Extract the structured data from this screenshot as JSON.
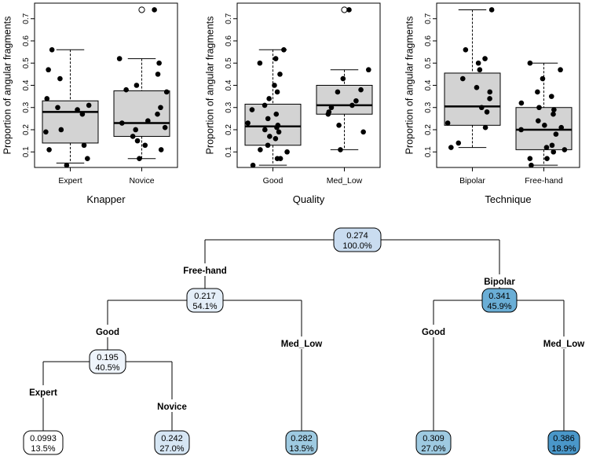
{
  "chart_data": [
    {
      "type": "boxplot",
      "xlabel": "Knapper",
      "ylabel": "Proportion of angular fragments",
      "ylim": [
        0.03,
        0.77
      ],
      "yticks": [
        0.1,
        0.2,
        0.3,
        0.4,
        0.5,
        0.6,
        0.7
      ],
      "categories": [
        "Expert",
        "Novice"
      ],
      "boxes": [
        {
          "category": "Expert",
          "whisker_low": 0.05,
          "q1": 0.14,
          "median": 0.28,
          "q3": 0.33,
          "whisker_high": 0.56,
          "outliers": []
        },
        {
          "category": "Novice",
          "whisker_low": 0.07,
          "q1": 0.17,
          "median": 0.23,
          "q3": 0.375,
          "whisker_high": 0.52,
          "outliers": [
            0.74
          ]
        }
      ],
      "points": [
        {
          "category": "Expert",
          "values": [
            0.04,
            0.07,
            0.11,
            0.13,
            0.19,
            0.2,
            0.27,
            0.29,
            0.3,
            0.31,
            0.34,
            0.43,
            0.47,
            0.56
          ]
        },
        {
          "category": "Novice",
          "values": [
            0.07,
            0.11,
            0.13,
            0.15,
            0.17,
            0.2,
            0.21,
            0.23,
            0.24,
            0.27,
            0.3,
            0.37,
            0.38,
            0.4,
            0.45,
            0.5,
            0.52,
            0.74
          ]
        }
      ]
    },
    {
      "type": "boxplot",
      "xlabel": "Quality",
      "ylabel": "Proportion of angular fragments",
      "ylim": [
        0.03,
        0.77
      ],
      "yticks": [
        0.1,
        0.2,
        0.3,
        0.4,
        0.5,
        0.6,
        0.7
      ],
      "categories": [
        "Good",
        "Med_Low"
      ],
      "boxes": [
        {
          "category": "Good",
          "whisker_low": 0.04,
          "q1": 0.13,
          "median": 0.215,
          "q3": 0.315,
          "whisker_high": 0.56,
          "outliers": []
        },
        {
          "category": "Med_Low",
          "whisker_low": 0.11,
          "q1": 0.27,
          "median": 0.31,
          "q3": 0.4,
          "whisker_high": 0.47,
          "outliers": [
            0.74
          ]
        }
      ],
      "points": [
        {
          "category": "Good",
          "values": [
            0.04,
            0.07,
            0.07,
            0.1,
            0.11,
            0.13,
            0.16,
            0.17,
            0.19,
            0.2,
            0.21,
            0.22,
            0.23,
            0.25,
            0.27,
            0.29,
            0.31,
            0.34,
            0.37,
            0.4,
            0.45,
            0.5,
            0.52,
            0.56
          ]
        },
        {
          "category": "Med_Low",
          "values": [
            0.11,
            0.19,
            0.22,
            0.27,
            0.28,
            0.3,
            0.31,
            0.33,
            0.37,
            0.38,
            0.43,
            0.47,
            0.74
          ]
        }
      ]
    },
    {
      "type": "boxplot",
      "xlabel": "Technique",
      "ylabel": "Proportion of angular fragments",
      "ylim": [
        0.03,
        0.77
      ],
      "yticks": [
        0.1,
        0.2,
        0.3,
        0.4,
        0.5,
        0.6,
        0.7
      ],
      "categories": [
        "Bipolar",
        "Free-hand"
      ],
      "boxes": [
        {
          "category": "Bipolar",
          "whisker_low": 0.12,
          "q1": 0.22,
          "median": 0.305,
          "q3": 0.455,
          "whisker_high": 0.74,
          "outliers": []
        },
        {
          "category": "Free-hand",
          "whisker_low": 0.04,
          "q1": 0.11,
          "median": 0.2,
          "q3": 0.3,
          "whisker_high": 0.5,
          "outliers": []
        }
      ],
      "points": [
        {
          "category": "Bipolar",
          "values": [
            0.12,
            0.14,
            0.21,
            0.23,
            0.28,
            0.3,
            0.34,
            0.37,
            0.39,
            0.43,
            0.47,
            0.5,
            0.52,
            0.56,
            0.74
          ]
        },
        {
          "category": "Free-hand",
          "values": [
            0.04,
            0.07,
            0.07,
            0.1,
            0.11,
            0.12,
            0.13,
            0.18,
            0.2,
            0.21,
            0.22,
            0.24,
            0.27,
            0.29,
            0.3,
            0.32,
            0.35,
            0.37,
            0.43,
            0.47,
            0.5
          ]
        }
      ]
    },
    {
      "type": "tree",
      "nodes": [
        {
          "id": "root",
          "value": "0.274",
          "percent": "100.0%",
          "fill": "#c9dcf0"
        },
        {
          "id": "freehand",
          "value": "0.217",
          "percent": "54.1%",
          "fill": "#e4eef8",
          "branch_label": "Free-hand"
        },
        {
          "id": "bipolar",
          "value": "0.341",
          "percent": "45.9%",
          "fill": "#6aaed6",
          "branch_label": "Bipolar"
        },
        {
          "id": "good_fh",
          "value": "0.195",
          "percent": "40.5%",
          "fill": "#eef4fb",
          "branch_label": "Good"
        },
        {
          "id": "medlow_fh",
          "value": "0.282",
          "percent": "13.5%",
          "fill": "#9ecae1",
          "branch_label": "Med_Low"
        },
        {
          "id": "expert",
          "value": "0.0993",
          "percent": "13.5%",
          "fill": "#ffffff",
          "branch_label": "Expert"
        },
        {
          "id": "novice",
          "value": "0.242",
          "percent": "27.0%",
          "fill": "#d6e6f4",
          "branch_label": "Novice"
        },
        {
          "id": "good_bp",
          "value": "0.309",
          "percent": "27.0%",
          "fill": "#9ecae1",
          "branch_label": "Good"
        },
        {
          "id": "medlow_bp",
          "value": "0.386",
          "percent": "18.9%",
          "fill": "#4a97c9",
          "branch_label": "Med_Low"
        }
      ],
      "edges": [
        [
          "root",
          "freehand"
        ],
        [
          "root",
          "bipolar"
        ],
        [
          "freehand",
          "good_fh"
        ],
        [
          "freehand",
          "medlow_fh"
        ],
        [
          "good_fh",
          "expert"
        ],
        [
          "good_fh",
          "novice"
        ],
        [
          "bipolar",
          "good_bp"
        ],
        [
          "bipolar",
          "medlow_bp"
        ]
      ]
    }
  ]
}
